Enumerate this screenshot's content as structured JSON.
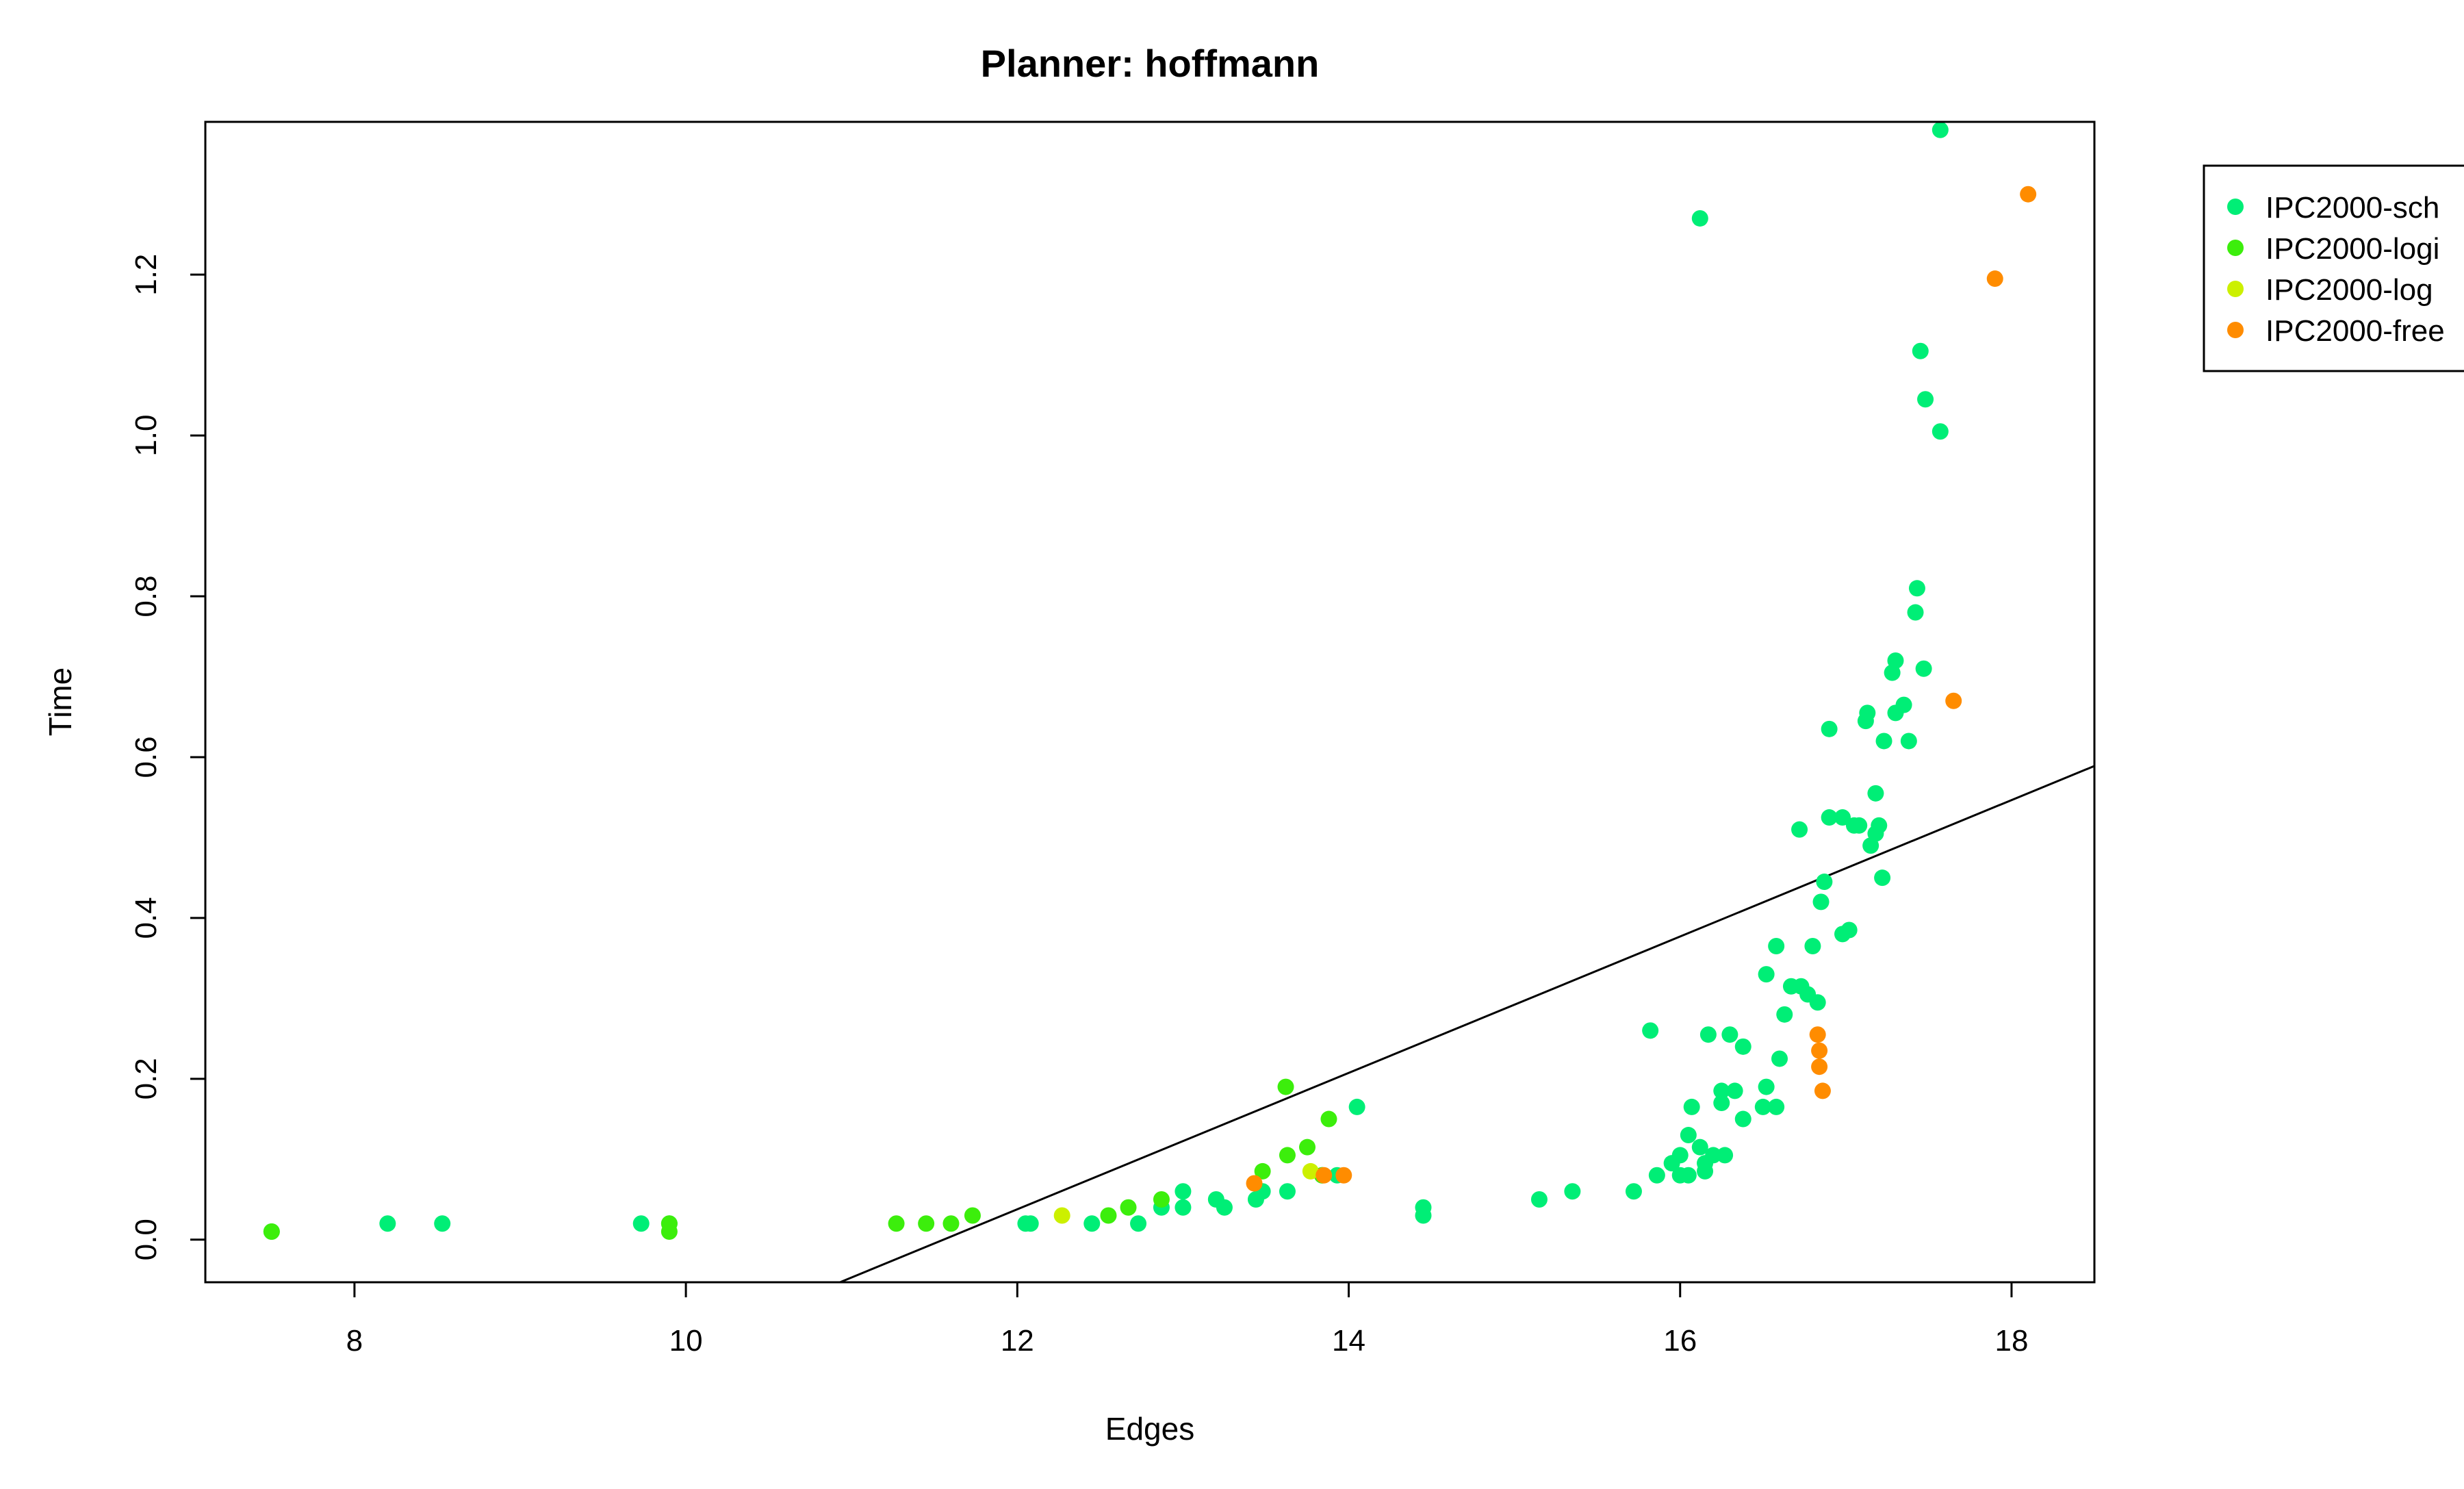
{
  "chart_data": {
    "type": "scatter",
    "title": "Planner: hoffmann",
    "xlabel": "Edges",
    "ylabel": "Time",
    "xlim": [
      7.1,
      18.5
    ],
    "ylim": [
      -0.053,
      1.39
    ],
    "x_ticks": [
      "8",
      "10",
      "12",
      "14",
      "16",
      "18"
    ],
    "y_ticks": [
      "0.0",
      "0.2",
      "0.4",
      "0.6",
      "0.8",
      "1.0",
      "1.2"
    ],
    "grid": false,
    "legend_position": "right-outside-top",
    "regression_line": {
      "x": [
        10.93,
        18.5
      ],
      "y": [
        -0.053,
        0.589
      ],
      "color": "#000000"
    },
    "series": [
      {
        "name": "IPC2000-sch",
        "color": "#00ee76",
        "points": [
          [
            7.5,
            0.01
          ],
          [
            8.2,
            0.02
          ],
          [
            8.53,
            0.02
          ],
          [
            9.73,
            0.02
          ],
          [
            9.9,
            0.02
          ],
          [
            12.05,
            0.02
          ],
          [
            12.08,
            0.02
          ],
          [
            12.45,
            0.02
          ],
          [
            12.73,
            0.02
          ],
          [
            12.87,
            0.04
          ],
          [
            13.0,
            0.04
          ],
          [
            13.0,
            0.06
          ],
          [
            13.2,
            0.05
          ],
          [
            13.25,
            0.04
          ],
          [
            13.44,
            0.05
          ],
          [
            13.48,
            0.06
          ],
          [
            13.63,
            0.06
          ],
          [
            13.84,
            0.08
          ],
          [
            13.93,
            0.08
          ],
          [
            14.05,
            0.165
          ],
          [
            14.45,
            0.03
          ],
          [
            14.45,
            0.04
          ],
          [
            15.15,
            0.05
          ],
          [
            15.35,
            0.06
          ],
          [
            15.72,
            0.06
          ],
          [
            15.82,
            0.26
          ],
          [
            15.86,
            0.08
          ],
          [
            15.95,
            0.095
          ],
          [
            16.0,
            0.08
          ],
          [
            16.05,
            0.08
          ],
          [
            16.0,
            0.105
          ],
          [
            16.05,
            0.13
          ],
          [
            16.07,
            0.165
          ],
          [
            16.12,
            0.115
          ],
          [
            16.15,
            0.085
          ],
          [
            16.17,
            0.255
          ],
          [
            16.15,
            0.095
          ],
          [
            16.2,
            0.105
          ],
          [
            16.25,
            0.17
          ],
          [
            16.25,
            0.185
          ],
          [
            16.27,
            0.105
          ],
          [
            16.3,
            0.255
          ],
          [
            16.33,
            0.185
          ],
          [
            16.38,
            0.15
          ],
          [
            16.38,
            0.24
          ],
          [
            16.5,
            0.165
          ],
          [
            16.52,
            0.19
          ],
          [
            16.52,
            0.33
          ],
          [
            16.58,
            0.165
          ],
          [
            16.58,
            0.365
          ],
          [
            16.6,
            0.225
          ],
          [
            16.63,
            0.28
          ],
          [
            16.67,
            0.315
          ],
          [
            16.72,
            0.51
          ],
          [
            16.73,
            0.315
          ],
          [
            16.77,
            0.305
          ],
          [
            16.8,
            0.365
          ],
          [
            16.83,
            0.295
          ],
          [
            16.85,
            0.42
          ],
          [
            16.87,
            0.445
          ],
          [
            16.9,
            0.525
          ],
          [
            16.9,
            0.635
          ],
          [
            16.98,
            0.525
          ],
          [
            16.98,
            0.38
          ],
          [
            17.02,
            0.385
          ],
          [
            17.05,
            0.515
          ],
          [
            17.08,
            0.515
          ],
          [
            17.12,
            0.645
          ],
          [
            17.13,
            0.655
          ],
          [
            17.15,
            0.49
          ],
          [
            17.18,
            0.555
          ],
          [
            17.18,
            0.505
          ],
          [
            17.2,
            0.515
          ],
          [
            17.22,
            0.45
          ],
          [
            17.23,
            0.62
          ],
          [
            17.28,
            0.705
          ],
          [
            17.3,
            0.72
          ],
          [
            17.3,
            0.655
          ],
          [
            17.35,
            0.665
          ],
          [
            17.38,
            0.62
          ],
          [
            17.42,
            0.78
          ],
          [
            17.43,
            0.81
          ],
          [
            17.45,
            1.105
          ],
          [
            17.47,
            0.71
          ],
          [
            17.48,
            1.045
          ],
          [
            17.57,
            1.005
          ],
          [
            17.57,
            1.38
          ],
          [
            16.12,
            1.27
          ]
        ]
      },
      {
        "name": "IPC2000-logi",
        "color": "#3cee0c",
        "points": [
          [
            7.5,
            0.01
          ],
          [
            9.9,
            0.01
          ],
          [
            9.9,
            0.02
          ],
          [
            11.27,
            0.02
          ],
          [
            11.45,
            0.02
          ],
          [
            11.6,
            0.02
          ],
          [
            11.73,
            0.03
          ],
          [
            12.55,
            0.03
          ],
          [
            12.67,
            0.04
          ],
          [
            12.87,
            0.05
          ],
          [
            13.48,
            0.085
          ],
          [
            13.62,
            0.19
          ],
          [
            13.63,
            0.105
          ],
          [
            13.75,
            0.115
          ],
          [
            13.88,
            0.15
          ],
          [
            13.84,
            0.08
          ]
        ]
      },
      {
        "name": "IPC2000-log",
        "color": "#ccf000",
        "points": [
          [
            12.27,
            0.03
          ],
          [
            13.77,
            0.085
          ]
        ]
      },
      {
        "name": "IPC2000-free",
        "color": "#ff8c00",
        "points": [
          [
            13.43,
            0.07
          ],
          [
            13.85,
            0.08
          ],
          [
            13.97,
            0.08
          ],
          [
            16.83,
            0.255
          ],
          [
            16.84,
            0.235
          ],
          [
            16.84,
            0.215
          ],
          [
            16.86,
            0.185
          ],
          [
            17.65,
            0.67
          ],
          [
            17.9,
            1.195
          ],
          [
            18.1,
            1.3
          ]
        ]
      }
    ]
  }
}
